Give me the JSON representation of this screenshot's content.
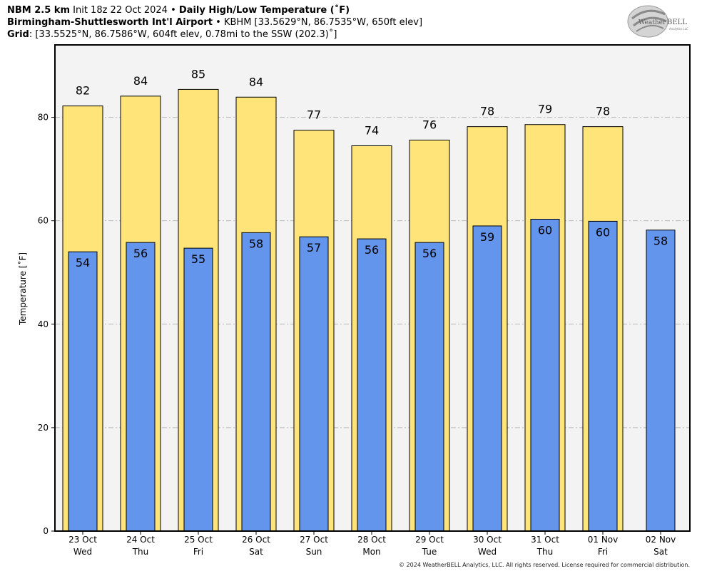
{
  "header": {
    "model": "NBM 2.5 km",
    "init": "Init 18z 22 Oct 2024",
    "bullet": "•",
    "product": "Daily High/Low Temperature (˚F)",
    "station_name": "Birmingham-Shuttlesworth Int'l Airport",
    "station_info": "KBHM [33.5629°N, 86.7535°W, 650ft elev]",
    "grid_label": "Grid",
    "grid_info": ": [33.5525°N, 86.7586°W, 604ft elev, 0.78mi to the SSW (202.3)˚]"
  },
  "logo": {
    "text_a": "Weather",
    "text_b": "BELL",
    "sub": "Analytics LLC"
  },
  "copyright": "© 2024 WeatherBELL Analytics, LLC. All rights reserved. License required for commercial distribution.",
  "colors": {
    "high": "#ffe47a",
    "low": "#6495ed",
    "plot_bg": "#f3f3f3",
    "grid": "#b8b8b8"
  },
  "chart_data": {
    "type": "bar",
    "title": "Daily High/Low Temperature (˚F)",
    "ylabel": "Temperature [˚F]",
    "xlabel": "",
    "ylim": [
      0,
      94
    ],
    "yticks": [
      0,
      20,
      40,
      60,
      80
    ],
    "grid": "horizontal dashed",
    "categories": [
      {
        "date": "23 Oct",
        "day": "Wed"
      },
      {
        "date": "24 Oct",
        "day": "Thu"
      },
      {
        "date": "25 Oct",
        "day": "Fri"
      },
      {
        "date": "26 Oct",
        "day": "Sat"
      },
      {
        "date": "27 Oct",
        "day": "Sun"
      },
      {
        "date": "28 Oct",
        "day": "Mon"
      },
      {
        "date": "29 Oct",
        "day": "Tue"
      },
      {
        "date": "30 Oct",
        "day": "Wed"
      },
      {
        "date": "31 Oct",
        "day": "Thu"
      },
      {
        "date": "01 Nov",
        "day": "Fri"
      },
      {
        "date": "02 Nov",
        "day": "Sat"
      }
    ],
    "series": [
      {
        "name": "High",
        "values": [
          82.2,
          84.1,
          85.4,
          83.9,
          77.5,
          74.5,
          75.6,
          78.2,
          78.6,
          78.2,
          null
        ],
        "labels": [
          "82",
          "84",
          "85",
          "84",
          "77",
          "74",
          "76",
          "78",
          "79",
          "78",
          ""
        ]
      },
      {
        "name": "Low",
        "values": [
          54.0,
          55.8,
          54.7,
          57.7,
          56.9,
          56.5,
          55.8,
          59.0,
          60.3,
          59.9,
          58.2
        ],
        "labels": [
          "54",
          "56",
          "55",
          "58",
          "57",
          "56",
          "56",
          "59",
          "60",
          "60",
          "58"
        ]
      }
    ]
  }
}
